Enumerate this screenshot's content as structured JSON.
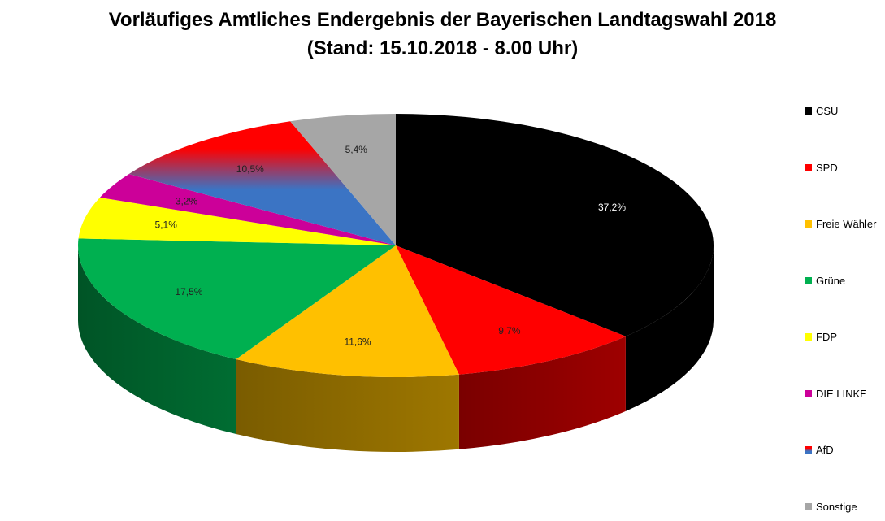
{
  "chart_data": {
    "type": "pie",
    "title": "Vorläufiges Amtliches Endergebnis der Bayerischen Landtagswahl 2018",
    "subtitle": "(Stand: 15.10.2018 - 8.00 Uhr)",
    "three_d": true,
    "legend_placement": "right",
    "slices": [
      {
        "name": "CSU",
        "value": 37.2,
        "label": "37,2%",
        "color": "#000000"
      },
      {
        "name": "SPD",
        "value": 9.7,
        "label": "9,7%",
        "color": "#ff0000"
      },
      {
        "name": "Freie Wähler",
        "value": 11.6,
        "label": "11,6%",
        "color": "#ffc000"
      },
      {
        "name": "Grüne",
        "value": 17.5,
        "label": "17,5%",
        "color": "#00b050"
      },
      {
        "name": "FDP",
        "value": 5.1,
        "label": "5,1%",
        "color": "#ffff00"
      },
      {
        "name": "DIE LINKE",
        "value": 3.2,
        "label": "3,2%",
        "color": "#cc0099"
      },
      {
        "name": "AfD",
        "value": 10.5,
        "label": "10,5%",
        "color": "#3b74c4",
        "accent_color": "#ff0000"
      },
      {
        "name": "Sonstige",
        "value": 5.4,
        "label": "5,4%",
        "color": "#a6a6a6"
      }
    ]
  }
}
